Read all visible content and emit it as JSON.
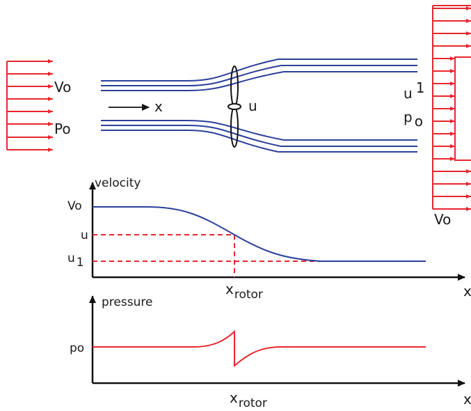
{
  "colors": {
    "streamline": "#2b3f9a",
    "profile": "#e8262c",
    "axis": "#111111",
    "text": "#1a1a1a"
  },
  "top": {
    "inlet_velocity_label": "Vo",
    "inlet_pressure_label": "Po",
    "flow_axis_label": "x",
    "rotor_velocity_label": "u",
    "wake_velocity": {
      "base": "u",
      "sub": "1"
    },
    "wake_pressure": {
      "base": "p",
      "sub": "o"
    },
    "far_velocity_label": "Vo"
  },
  "velocity_plot": {
    "ylabel": "velocity",
    "tick_v0": "Vo",
    "tick_u": "u",
    "tick_u1": {
      "base": "u",
      "sub": "1"
    },
    "xlabel": "x",
    "rotor_label": {
      "base": "x",
      "sub": "rotor"
    }
  },
  "pressure_plot": {
    "ylabel": "pressure",
    "tick_p0": "po",
    "xlabel": "x",
    "rotor_label": {
      "base": "x",
      "sub": "rotor"
    }
  },
  "icons": [
    "arrow-right-icon",
    "rotor-icon"
  ]
}
